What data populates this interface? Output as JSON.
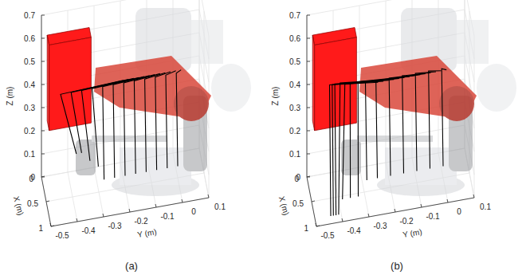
{
  "chart_data": [
    {
      "type": "line3d",
      "caption": "(a)",
      "xlabel": "X (m)",
      "ylabel": "Y (m)",
      "zlabel": "Z (m)",
      "xlim": [
        0,
        1
      ],
      "ylim": [
        -0.5,
        0.1
      ],
      "zlim": [
        0,
        0.7
      ],
      "xticks": [
        0,
        0.5,
        1
      ],
      "yticks": [
        -0.5,
        -0.4,
        -0.3,
        -0.2,
        -0.1,
        0,
        0.1
      ],
      "zticks": [
        0,
        0.1,
        0.2,
        0.3,
        0.4,
        0.5,
        0.6,
        0.7
      ],
      "grid": true,
      "color": "#000000",
      "obstacle": {
        "x": [
          0.05,
          0.25
        ],
        "y": [
          -0.48,
          -0.32
        ],
        "z": [
          0.25,
          0.62
        ],
        "color": "#ff1a1a"
      },
      "lines": [
        {
          "x": [
            0.3,
            0.35,
            0.5
          ],
          "y": [
            0.02,
            0.0,
            0.0
          ],
          "z": [
            0.42,
            0.42,
            0.05
          ]
        },
        {
          "x": [
            0.3,
            0.35,
            0.5
          ],
          "y": [
            0.0,
            -0.04,
            -0.04
          ],
          "z": [
            0.42,
            0.42,
            0.05
          ]
        },
        {
          "x": [
            0.3,
            0.35,
            0.5
          ],
          "y": [
            -0.02,
            -0.08,
            -0.08
          ],
          "z": [
            0.42,
            0.42,
            0.05
          ]
        },
        {
          "x": [
            0.3,
            0.35,
            0.5
          ],
          "y": [
            -0.04,
            -0.12,
            -0.12
          ],
          "z": [
            0.42,
            0.42,
            0.05
          ]
        },
        {
          "x": [
            0.3,
            0.35,
            0.5
          ],
          "y": [
            -0.06,
            -0.16,
            -0.16
          ],
          "z": [
            0.42,
            0.42,
            0.05
          ]
        },
        {
          "x": [
            0.3,
            0.35,
            0.5
          ],
          "y": [
            -0.08,
            -0.2,
            -0.2
          ],
          "z": [
            0.42,
            0.42,
            0.05
          ]
        },
        {
          "x": [
            0.3,
            0.35,
            0.5
          ],
          "y": [
            -0.1,
            -0.24,
            -0.24
          ],
          "z": [
            0.42,
            0.42,
            0.05
          ]
        },
        {
          "x": [
            0.3,
            0.35,
            0.5
          ],
          "y": [
            -0.12,
            -0.28,
            -0.28
          ],
          "z": [
            0.42,
            0.42,
            0.05
          ]
        },
        {
          "x": [
            0.3,
            0.35,
            0.45
          ],
          "y": [
            -0.14,
            -0.32,
            -0.3
          ],
          "z": [
            0.42,
            0.42,
            0.1
          ]
        },
        {
          "x": [
            0.3,
            0.35,
            0.4
          ],
          "y": [
            -0.16,
            -0.36,
            -0.33
          ],
          "z": [
            0.42,
            0.42,
            0.12
          ]
        },
        {
          "x": [
            0.3,
            0.35,
            0.35
          ],
          "y": [
            -0.18,
            -0.4,
            -0.36
          ],
          "z": [
            0.42,
            0.42,
            0.15
          ]
        },
        {
          "x": [
            0.3,
            0.35,
            0.35
          ],
          "y": [
            -0.2,
            -0.44,
            -0.38
          ],
          "z": [
            0.42,
            0.42,
            0.15
          ]
        }
      ]
    },
    {
      "type": "line3d",
      "caption": "(b)",
      "xlabel": "X (m)",
      "ylabel": "Y (m)",
      "zlabel": "Z (m)",
      "xlim": [
        0,
        1
      ],
      "ylim": [
        -0.5,
        0.1
      ],
      "zlim": [
        0,
        0.7
      ],
      "xticks": [
        0,
        0.5,
        1
      ],
      "yticks": [
        -0.5,
        -0.4,
        -0.3,
        -0.2,
        -0.1,
        0,
        0.1
      ],
      "zticks": [
        0,
        0.1,
        0.2,
        0.3,
        0.4,
        0.5,
        0.6,
        0.7
      ],
      "grid": true,
      "color": "#000000",
      "obstacle": {
        "x": [
          0.05,
          0.25
        ],
        "y": [
          -0.48,
          -0.32
        ],
        "z": [
          0.25,
          0.62
        ],
        "color": "#ff1a1a"
      },
      "lines": [
        {
          "x": [
            0.3,
            0.35,
            0.5
          ],
          "y": [
            0.02,
            0.0,
            0.0
          ],
          "z": [
            0.42,
            0.44,
            0.05
          ]
        },
        {
          "x": [
            0.3,
            0.35,
            0.5
          ],
          "y": [
            0.0,
            -0.05,
            -0.05
          ],
          "z": [
            0.42,
            0.44,
            0.05
          ]
        },
        {
          "x": [
            0.3,
            0.35,
            0.5
          ],
          "y": [
            -0.02,
            -0.1,
            -0.1
          ],
          "z": [
            0.42,
            0.44,
            0.05
          ]
        },
        {
          "x": [
            0.3,
            0.35,
            0.5
          ],
          "y": [
            -0.04,
            -0.15,
            -0.15
          ],
          "z": [
            0.42,
            0.44,
            0.05
          ]
        },
        {
          "x": [
            0.3,
            0.35,
            0.5
          ],
          "y": [
            -0.06,
            -0.2,
            -0.2
          ],
          "z": [
            0.42,
            0.44,
            0.05
          ]
        },
        {
          "x": [
            0.3,
            0.35,
            0.5
          ],
          "y": [
            -0.08,
            -0.25,
            -0.25
          ],
          "z": [
            0.42,
            0.44,
            0.05
          ]
        },
        {
          "x": [
            0.3,
            0.35,
            0.5
          ],
          "y": [
            -0.1,
            -0.29,
            -0.29
          ],
          "z": [
            0.42,
            0.44,
            0.05
          ]
        },
        {
          "x": [
            0.3,
            0.4,
            0.7
          ],
          "y": [
            -0.12,
            -0.32,
            -0.33
          ],
          "z": [
            0.42,
            0.46,
            0.03
          ]
        },
        {
          "x": [
            0.3,
            0.4,
            0.7
          ],
          "y": [
            -0.14,
            -0.35,
            -0.36
          ],
          "z": [
            0.42,
            0.46,
            0.03
          ]
        },
        {
          "x": [
            0.3,
            0.4,
            0.7
          ],
          "y": [
            -0.16,
            -0.37,
            -0.39
          ],
          "z": [
            0.42,
            0.46,
            0.03
          ]
        },
        {
          "x": [
            0.3,
            0.45,
            0.85
          ],
          "y": [
            -0.18,
            -0.39,
            -0.41
          ],
          "z": [
            0.42,
            0.48,
            0.0
          ]
        },
        {
          "x": [
            0.3,
            0.45,
            0.85
          ],
          "y": [
            -0.2,
            -0.41,
            -0.42
          ],
          "z": [
            0.42,
            0.48,
            0.0
          ]
        },
        {
          "x": [
            0.3,
            0.45,
            0.85
          ],
          "y": [
            -0.22,
            -0.42,
            -0.43
          ],
          "z": [
            0.42,
            0.48,
            0.0
          ]
        },
        {
          "x": [
            0.3,
            0.45,
            0.85
          ],
          "y": [
            -0.24,
            -0.43,
            -0.44
          ],
          "z": [
            0.42,
            0.48,
            0.0
          ]
        }
      ]
    }
  ]
}
